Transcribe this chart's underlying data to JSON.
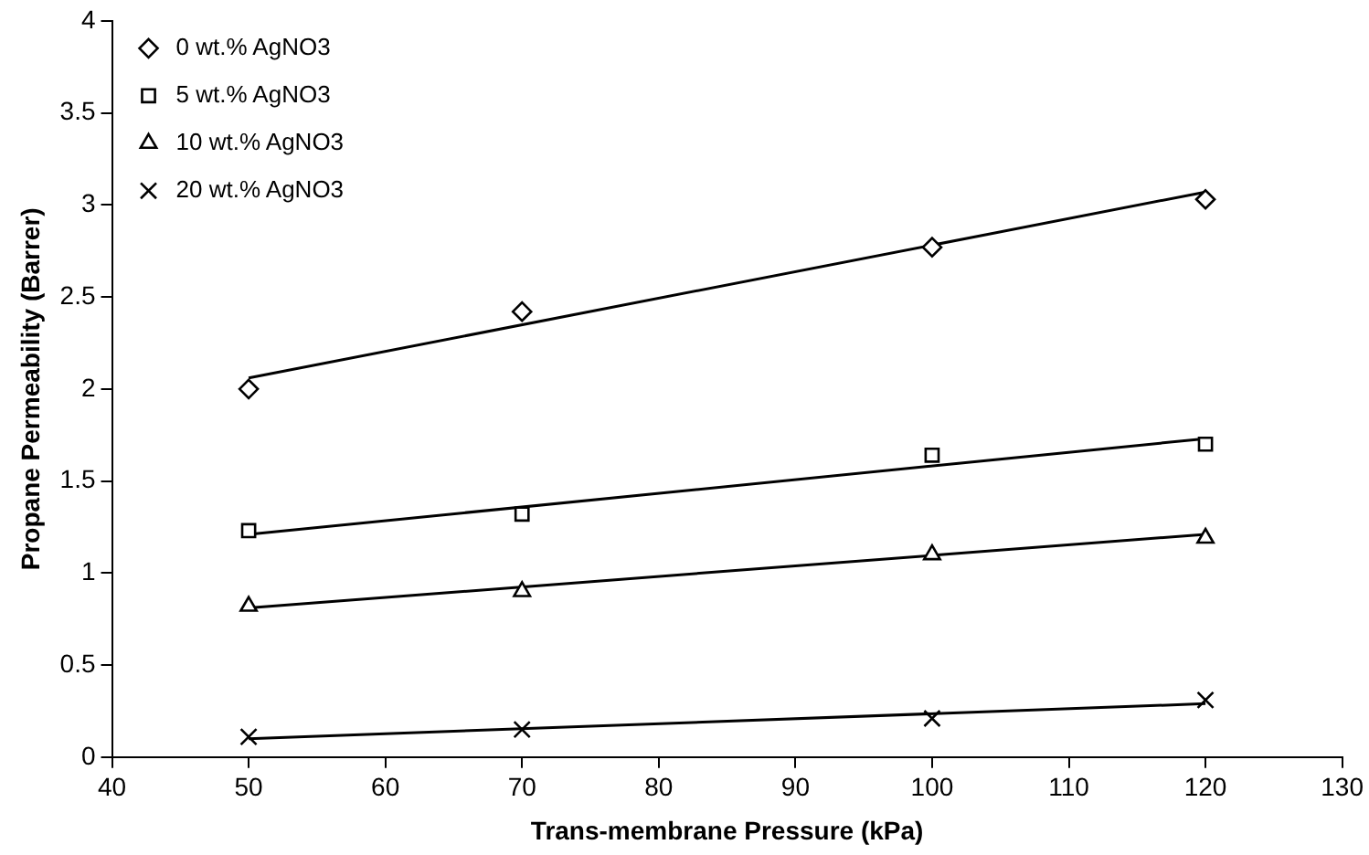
{
  "chart_data": {
    "type": "scatter",
    "xlabel": "Trans-membrane Pressure (kPa)",
    "ylabel": "Propane Permeability (Barrer)",
    "xlim": [
      40,
      130
    ],
    "xticks": [
      40,
      50,
      60,
      70,
      80,
      90,
      100,
      110,
      120,
      130
    ],
    "ylim": [
      0,
      4
    ],
    "yticks": [
      0,
      0.5,
      1,
      1.5,
      2,
      2.5,
      3,
      3.5,
      4
    ],
    "grid": false,
    "legend": "top left",
    "series": [
      {
        "name": "0 wt.% AgNO3",
        "color": "#000000",
        "marker": "diamond",
        "x": [
          50,
          70,
          100,
          120
        ],
        "values": [
          2.0,
          2.42,
          2.77,
          3.03
        ]
      },
      {
        "name": "5 wt.% AgNO3",
        "color": "#000000",
        "marker": "square",
        "x": [
          50,
          70,
          100,
          120
        ],
        "values": [
          1.23,
          1.32,
          1.64,
          1.7
        ]
      },
      {
        "name": "10 wt.% AgNO3",
        "color": "#000000",
        "marker": "triangle",
        "x": [
          50,
          70,
          100,
          120
        ],
        "values": [
          0.82,
          0.9,
          1.1,
          1.19
        ]
      },
      {
        "name": "20 wt.% AgNO3",
        "color": "#000000",
        "marker": "cross",
        "x": [
          50,
          70,
          100,
          120
        ],
        "values": [
          0.11,
          0.15,
          0.21,
          0.31
        ]
      },
      {
        "type": "line",
        "color": "#000000",
        "marker": "none",
        "x": [
          50,
          120
        ],
        "values": [
          2.06,
          3.07
        ]
      },
      {
        "type": "line",
        "color": "#000000",
        "marker": "none",
        "x": [
          50,
          120
        ],
        "values": [
          1.21,
          1.73
        ]
      },
      {
        "type": "line",
        "color": "#000000",
        "marker": "none",
        "x": [
          50,
          120
        ],
        "values": [
          0.81,
          1.21
        ]
      },
      {
        "type": "line",
        "color": "#000000",
        "marker": "none",
        "x": [
          50,
          120
        ],
        "values": [
          0.1,
          0.29
        ]
      }
    ]
  }
}
